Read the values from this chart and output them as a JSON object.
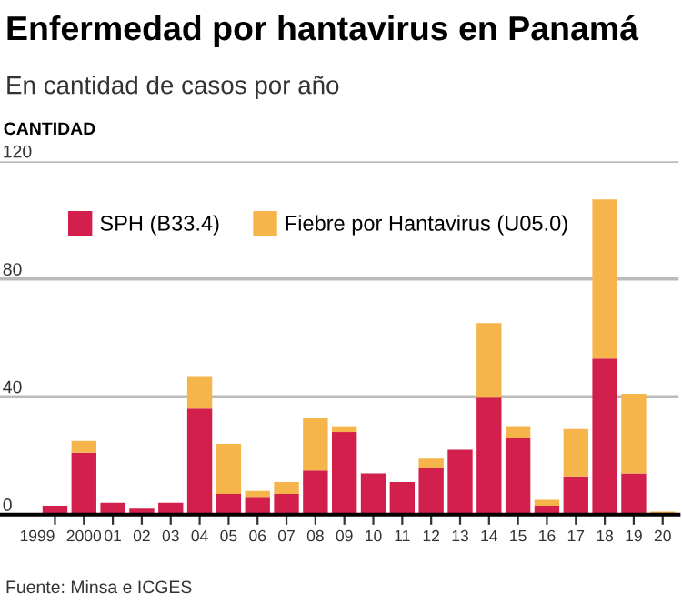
{
  "chart_data": {
    "type": "bar",
    "title": "Enfermedad por hantavirus en Panamá",
    "subtitle": "En cantidad de casos por año",
    "ylabel": "CANTIDAD",
    "annotations": [
      "Fuente: Minsa e ICGES"
    ],
    "categories": [
      "1999",
      "2000",
      "01",
      "02",
      "03",
      "04",
      "05",
      "06",
      "07",
      "08",
      "09",
      "10",
      "11",
      "12",
      "13",
      "14",
      "15",
      "16",
      "17",
      "18",
      "19",
      "20"
    ],
    "stacked": true,
    "series": [
      {
        "name": "SPH (B33.4)",
        "color": "#d21f4b",
        "values": [
          3,
          21,
          4,
          2,
          4,
          36,
          7,
          6,
          7,
          15,
          28,
          14,
          11,
          16,
          22,
          40,
          26,
          3,
          13,
          53,
          14,
          0
        ]
      },
      {
        "name": "Fiebre por Hantavirus (U05.0)",
        "color": "#f5b54a",
        "values": [
          0,
          4,
          0,
          0,
          0,
          11,
          17,
          2,
          4,
          18,
          2,
          0,
          0,
          3,
          0,
          25,
          4,
          2,
          16,
          54,
          27,
          1
        ]
      }
    ],
    "ylim": [
      0,
      120
    ],
    "yticks": [
      0,
      40,
      80,
      120
    ],
    "grid": "y",
    "legend": "top"
  }
}
